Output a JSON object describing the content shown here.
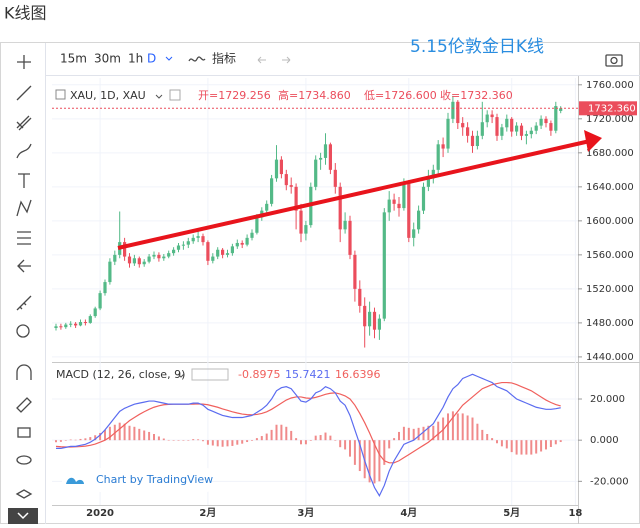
{
  "page_title": "K线图",
  "toolbar": {
    "intervals": [
      "15m",
      "30m",
      "1h"
    ],
    "active_interval": "D",
    "indicators": "指标"
  },
  "chart_data": {
    "type": "candlestick",
    "title": "5.15伦敦金日K线",
    "symbol": "XAU, 1D, XAU",
    "ohlc_legend": [
      "开=1729.256",
      "高=1734.860",
      "低=1726.600",
      "收=1732.360"
    ],
    "last_price": 1732.36,
    "last_price_label": "1732.360",
    "up_color": "#53b987",
    "down_color": "#eb4d5c",
    "ylim": [
      1434,
      1768
    ],
    "yticks": [
      {
        "value": 1760,
        "label": "1760.000"
      },
      {
        "value": 1720,
        "label": "1720.000"
      },
      {
        "value": 1680,
        "label": "1680.000"
      },
      {
        "value": 1640,
        "label": "1640.000"
      },
      {
        "value": 1600,
        "label": "1600.000"
      },
      {
        "value": 1560,
        "label": "1560.000"
      },
      {
        "value": 1520,
        "label": "1520.000"
      },
      {
        "value": 1480,
        "label": "1480.000"
      },
      {
        "value": 1440,
        "label": "1440.000"
      }
    ],
    "xticks": [
      {
        "value": 9,
        "label": "2020"
      },
      {
        "value": 31,
        "label": "2月"
      },
      {
        "value": 51,
        "label": "3月"
      },
      {
        "value": 72,
        "label": "4月"
      },
      {
        "value": 93,
        "label": "5月"
      },
      {
        "value": 106,
        "label": "18"
      }
    ],
    "candles": [
      [
        1474,
        1479,
        1471,
        1476
      ],
      [
        1476,
        1479,
        1472,
        1475
      ],
      [
        1475,
        1480,
        1473,
        1478
      ],
      [
        1478,
        1482,
        1475,
        1479
      ],
      [
        1479,
        1481,
        1474,
        1477
      ],
      [
        1477,
        1484,
        1476,
        1481
      ],
      [
        1481,
        1484,
        1477,
        1480
      ],
      [
        1480,
        1490,
        1479,
        1488
      ],
      [
        1488,
        1499,
        1486,
        1497
      ],
      [
        1497,
        1518,
        1495,
        1515
      ],
      [
        1515,
        1531,
        1512,
        1528
      ],
      [
        1528,
        1556,
        1525,
        1552
      ],
      [
        1552,
        1565,
        1548,
        1560
      ],
      [
        1560,
        1611,
        1556,
        1575
      ],
      [
        1575,
        1580,
        1553,
        1558
      ],
      [
        1558,
        1562,
        1545,
        1550
      ],
      [
        1550,
        1560,
        1547,
        1556
      ],
      [
        1556,
        1558,
        1545,
        1549
      ],
      [
        1549,
        1555,
        1546,
        1552
      ],
      [
        1552,
        1561,
        1550,
        1558
      ],
      [
        1558,
        1564,
        1555,
        1560
      ],
      [
        1560,
        1563,
        1552,
        1556
      ],
      [
        1556,
        1561,
        1553,
        1558
      ],
      [
        1558,
        1565,
        1556,
        1562
      ],
      [
        1562,
        1569,
        1559,
        1566
      ],
      [
        1566,
        1574,
        1563,
        1571
      ],
      [
        1571,
        1576,
        1566,
        1572
      ],
      [
        1572,
        1580,
        1568,
        1576
      ],
      [
        1576,
        1584,
        1573,
        1580
      ],
      [
        1580,
        1588,
        1575,
        1582
      ],
      [
        1582,
        1585,
        1571,
        1575
      ],
      [
        1575,
        1577,
        1548,
        1553
      ],
      [
        1553,
        1562,
        1550,
        1558
      ],
      [
        1558,
        1569,
        1555,
        1566
      ],
      [
        1566,
        1568,
        1556,
        1560
      ],
      [
        1560,
        1566,
        1557,
        1562
      ],
      [
        1562,
        1573,
        1559,
        1570
      ],
      [
        1570,
        1578,
        1567,
        1574
      ],
      [
        1574,
        1577,
        1568,
        1572
      ],
      [
        1572,
        1584,
        1570,
        1580
      ],
      [
        1580,
        1590,
        1577,
        1586
      ],
      [
        1586,
        1608,
        1584,
        1604
      ],
      [
        1604,
        1616,
        1600,
        1612
      ],
      [
        1612,
        1624,
        1608,
        1620
      ],
      [
        1620,
        1654,
        1617,
        1650
      ],
      [
        1650,
        1689,
        1646,
        1672
      ],
      [
        1672,
        1676,
        1650,
        1655
      ],
      [
        1655,
        1660,
        1636,
        1642
      ],
      [
        1642,
        1651,
        1632,
        1640
      ],
      [
        1640,
        1644,
        1590,
        1612
      ],
      [
        1612,
        1620,
        1575,
        1585
      ],
      [
        1585,
        1600,
        1577,
        1595
      ],
      [
        1595,
        1645,
        1592,
        1640
      ],
      [
        1640,
        1677,
        1636,
        1672
      ],
      [
        1672,
        1680,
        1660,
        1674
      ],
      [
        1674,
        1703,
        1666,
        1690
      ],
      [
        1690,
        1692,
        1655,
        1660
      ],
      [
        1660,
        1668,
        1632,
        1640
      ],
      [
        1640,
        1645,
        1575,
        1590
      ],
      [
        1590,
        1610,
        1585,
        1600
      ],
      [
        1600,
        1606,
        1555,
        1560
      ],
      [
        1560,
        1565,
        1505,
        1520
      ],
      [
        1520,
        1530,
        1492,
        1500
      ],
      [
        1500,
        1510,
        1451,
        1476
      ],
      [
        1476,
        1505,
        1465,
        1493
      ],
      [
        1493,
        1498,
        1462,
        1472
      ],
      [
        1472,
        1490,
        1460,
        1485
      ],
      [
        1485,
        1615,
        1482,
        1610
      ],
      [
        1610,
        1635,
        1600,
        1625
      ],
      [
        1625,
        1632,
        1612,
        1620
      ],
      [
        1620,
        1628,
        1605,
        1615
      ],
      [
        1615,
        1650,
        1612,
        1645
      ],
      [
        1645,
        1648,
        1575,
        1580
      ],
      [
        1580,
        1598,
        1570,
        1590
      ],
      [
        1590,
        1618,
        1585,
        1612
      ],
      [
        1612,
        1645,
        1608,
        1640
      ],
      [
        1640,
        1660,
        1635,
        1650
      ],
      [
        1650,
        1666,
        1644,
        1660
      ],
      [
        1660,
        1695,
        1655,
        1690
      ],
      [
        1690,
        1698,
        1675,
        1685
      ],
      [
        1685,
        1727,
        1680,
        1720
      ],
      [
        1720,
        1747,
        1715,
        1740
      ],
      [
        1740,
        1742,
        1708,
        1715
      ],
      [
        1715,
        1722,
        1700,
        1710
      ],
      [
        1710,
        1716,
        1692,
        1700
      ],
      [
        1700,
        1706,
        1680,
        1688
      ],
      [
        1688,
        1706,
        1684,
        1700
      ],
      [
        1700,
        1740,
        1696,
        1716
      ],
      [
        1716,
        1730,
        1710,
        1725
      ],
      [
        1725,
        1730,
        1715,
        1722
      ],
      [
        1722,
        1726,
        1694,
        1700
      ],
      [
        1700,
        1714,
        1695,
        1710
      ],
      [
        1710,
        1725,
        1705,
        1720
      ],
      [
        1720,
        1722,
        1699,
        1705
      ],
      [
        1705,
        1716,
        1700,
        1712
      ],
      [
        1712,
        1715,
        1695,
        1700
      ],
      [
        1700,
        1706,
        1690,
        1702
      ],
      [
        1702,
        1710,
        1697,
        1706
      ],
      [
        1706,
        1716,
        1702,
        1712
      ],
      [
        1712,
        1724,
        1708,
        1720
      ],
      [
        1720,
        1723,
        1710,
        1715
      ],
      [
        1715,
        1718,
        1700,
        1706
      ],
      [
        1706,
        1740,
        1703,
        1735
      ],
      [
        1729.256,
        1734.86,
        1726.6,
        1732.36
      ]
    ],
    "macd": {
      "title": "MACD (12, 26, close, 9)",
      "ylim": [
        -31.5,
        37.5
      ],
      "yticks": [
        {
          "value": 20,
          "label": "20.000"
        },
        {
          "value": 0,
          "label": "0.000"
        },
        {
          "value": -20,
          "label": "-20.000"
        }
      ],
      "hist_color": "#f08a8a",
      "macd_color": "#5b6cf0",
      "signal_color": "#f0605d",
      "macd_line": [
        -4,
        -4,
        -3.5,
        -3,
        -3,
        -2.5,
        -2,
        -1,
        0.5,
        2.5,
        5,
        8,
        11,
        14,
        15.5,
        16.5,
        17.5,
        18,
        18.5,
        19,
        19,
        18.5,
        18,
        17.5,
        17.5,
        17.5,
        17.5,
        17.5,
        18,
        18,
        17,
        15,
        14,
        13,
        12,
        11.5,
        11,
        11,
        11,
        11.5,
        12,
        13.5,
        15,
        17,
        20,
        24,
        25.5,
        26,
        25,
        22,
        19,
        18.5,
        20,
        23,
        24,
        26,
        25,
        23,
        19,
        17,
        12,
        5,
        -2,
        -10,
        -17,
        -23,
        -27,
        -22,
        -15,
        -10,
        -6,
        -2,
        -1,
        0,
        2,
        4,
        6,
        8,
        12,
        16,
        21,
        25,
        27,
        30,
        31,
        32,
        31,
        30,
        29,
        28,
        26,
        25,
        24,
        22,
        20,
        19,
        18,
        17,
        16,
        15.5,
        15,
        15,
        15.3,
        15.7421
      ],
      "signal": [
        -3,
        -3.2,
        -3.3,
        -3.3,
        -3.2,
        -3.1,
        -2.9,
        -2.5,
        -1.9,
        -1,
        0,
        1.5,
        3.5,
        5.5,
        7.5,
        9.5,
        11,
        12.5,
        13.8,
        15,
        16,
        16.7,
        17.2,
        17.4,
        17.5,
        17.5,
        17.5,
        17.5,
        17.5,
        17.6,
        17.5,
        17.2,
        16.6,
        16,
        15.2,
        14.5,
        13.8,
        13.2,
        12.7,
        12.4,
        12.3,
        12.5,
        13,
        13.8,
        15,
        16.5,
        18,
        19.5,
        20.5,
        21,
        21,
        20.5,
        20.3,
        20.8,
        21.5,
        22.3,
        22.8,
        23,
        22.4,
        21.5,
        20,
        17,
        13,
        8.5,
        3.5,
        -2,
        -7,
        -10,
        -11,
        -11,
        -10,
        -8.5,
        -7,
        -5.5,
        -4,
        -2.5,
        -1,
        1,
        3,
        5,
        8,
        11,
        14,
        17,
        19,
        21,
        23,
        25,
        26,
        27,
        27.5,
        28,
        28,
        27.8,
        27,
        26,
        25,
        24,
        22.5,
        21,
        19.5,
        18.3,
        17.3,
        16.6396
      ],
      "histogram": [
        -1,
        -0.8,
        -0.2,
        0.3,
        0.2,
        0.6,
        0.9,
        1.5,
        2.4,
        3.5,
        5,
        6.5,
        7.5,
        8.5,
        8,
        7,
        6.5,
        5.5,
        4.7,
        4,
        3,
        1.8,
        0.8,
        0.1,
        0,
        0,
        0,
        0,
        0.5,
        0.4,
        -0.5,
        -2.2,
        -2.6,
        -3,
        -3.2,
        -3,
        -2.8,
        -2.2,
        -1.7,
        -0.9,
        -0.3,
        1,
        2,
        3.2,
        5,
        7.5,
        7.5,
        6.5,
        4.5,
        1,
        -2,
        -2,
        -0.3,
        2.2,
        2.5,
        3.7,
        2.2,
        0,
        -3.4,
        -4.5,
        -8,
        -12,
        -15,
        -18.5,
        -20.5,
        -21,
        -20,
        -12,
        -4,
        1,
        4,
        6.5,
        6,
        5.5,
        6,
        6.5,
        7,
        7,
        9,
        11,
        13,
        14,
        13,
        13,
        12,
        11,
        8,
        5,
        3,
        1,
        -1.5,
        -3,
        -4,
        -5.8,
        -7,
        -7,
        -7,
        -7,
        -6.5,
        -5.5,
        -4.5,
        -3.3,
        -2,
        -0.8975
      ]
    },
    "credit": "Chart by TradingView"
  }
}
